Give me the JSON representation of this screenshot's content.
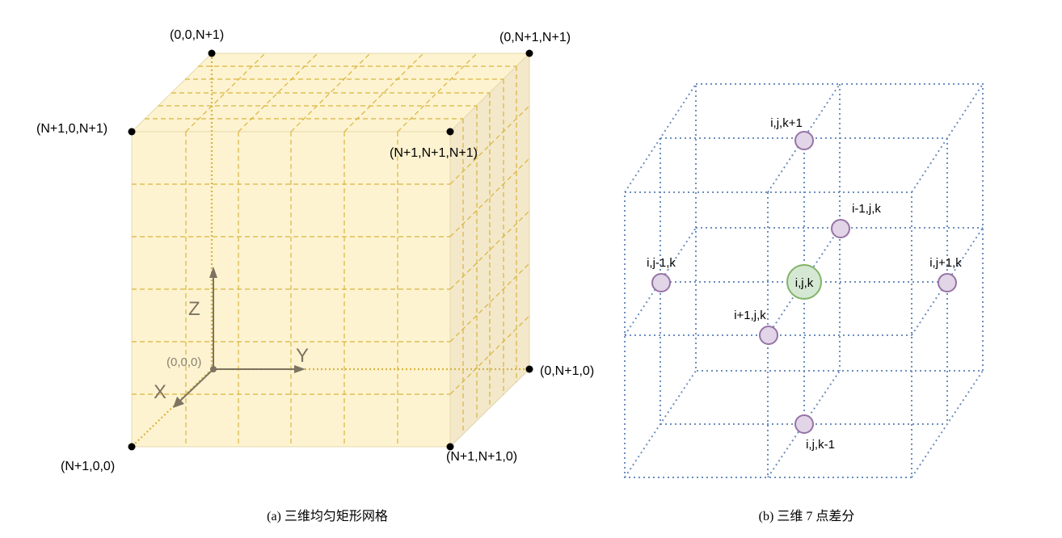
{
  "left_diagram": {
    "corners": {
      "top_back_left": "(0,0,N+1)",
      "top_back_right": "(0,N+1,N+1)",
      "top_front_left": "(N+1,0,N+1)",
      "top_front_right": "(N+1,N+1,N+1)",
      "bottom_back_right": "(0,N+1,0)",
      "bottom_front_left": "(N+1,0,0)",
      "bottom_front_right": "(N+1,N+1,0)"
    },
    "origin": "(0,0,0)",
    "axes": {
      "x": "X",
      "y": "Y",
      "z": "Z"
    },
    "colors": {
      "face": "#fdf3d0",
      "side": "#f3e8c9",
      "grid": "#d9b540",
      "axis": "#7d7361"
    }
  },
  "right_diagram": {
    "nodes": {
      "center": "i,j,k",
      "top": "i,j,k+1",
      "back": "i-1,j,k",
      "left": "i,j-1,k",
      "right": "i,j+1,k",
      "front": "i+1,j,k",
      "bottom": "i,j,k-1"
    },
    "colors": {
      "lines": "#6c8ebf",
      "center_fill": "#d5e8d4",
      "center_stroke": "#82b366",
      "node_fill": "#e1d5e7",
      "node_stroke": "#9673a6"
    }
  },
  "captions": {
    "a": "(a) 三维均匀矩形网格",
    "b": "(b) 三维 7 点差分"
  }
}
